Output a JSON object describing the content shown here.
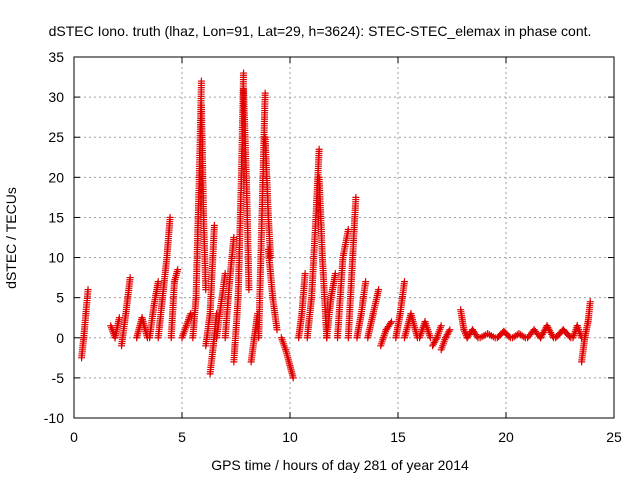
{
  "chart_data": {
    "type": "scatter",
    "title": "dSTEC Iono. truth (lhaz, Lon=91, Lat=29, h=3624): STEC-STEC_elemax in phase cont.",
    "xlabel": "GPS time / hours of day 281 of year 2014",
    "ylabel": "dSTEC  / TECUs",
    "xlim": [
      0,
      25
    ],
    "ylim": [
      -10,
      35
    ],
    "x_ticks": [
      0,
      5,
      10,
      15,
      20,
      25
    ],
    "y_ticks": [
      -10,
      -5,
      0,
      5,
      10,
      15,
      20,
      25,
      30,
      35
    ],
    "x_tick_labels": [
      "0",
      "5",
      "10",
      "15",
      "20",
      "25"
    ],
    "y_tick_labels": [
      "-10",
      "-5",
      "0",
      "5",
      "10",
      "15",
      "20",
      "25",
      "30",
      "35"
    ],
    "grid": true,
    "marker": "+",
    "series": [
      {
        "name": "dSTEC",
        "color": "#e00000",
        "arcs": [
          {
            "x": [
              0.35,
              0.45,
              0.55,
              0.65
            ],
            "y": [
              -2.5,
              0,
              3,
              6
            ]
          },
          {
            "x": [
              1.7,
              1.9,
              2.1
            ],
            "y": [
              1.5,
              0,
              2.5
            ]
          },
          {
            "x": [
              2.2,
              2.4,
              2.6
            ],
            "y": [
              -1,
              3,
              7.5
            ]
          },
          {
            "x": [
              2.9,
              3.15,
              3.4
            ],
            "y": [
              0,
              2.5,
              0
            ]
          },
          {
            "x": [
              3.5,
              3.7,
              3.9
            ],
            "y": [
              0,
              4,
              7
            ]
          },
          {
            "x": [
              3.9,
              4.1,
              4.3,
              4.45
            ],
            "y": [
              0,
              5,
              10,
              15
            ]
          },
          {
            "x": [
              4.5,
              4.65,
              4.8
            ],
            "y": [
              0,
              7,
              8.5
            ]
          },
          {
            "x": [
              5.0,
              5.2,
              5.4
            ],
            "y": [
              0,
              1.5,
              3
            ]
          },
          {
            "x": [
              5.5,
              5.65,
              5.8,
              5.9
            ],
            "y": [
              0,
              5,
              20,
              32
            ]
          },
          {
            "x": [
              5.9,
              6.0,
              6.1
            ],
            "y": [
              29,
              15,
              6
            ]
          },
          {
            "x": [
              6.1,
              6.3,
              6.5
            ],
            "y": [
              -1,
              3,
              14
            ]
          },
          {
            "x": [
              6.3,
              6.45,
              6.6
            ],
            "y": [
              -4.5,
              -1,
              3
            ]
          },
          {
            "x": [
              6.6,
              6.8,
              7.0
            ],
            "y": [
              0,
              4,
              8
            ]
          },
          {
            "x": [
              7.0,
              7.2,
              7.4
            ],
            "y": [
              0,
              7,
              12.5
            ]
          },
          {
            "x": [
              7.4,
              7.6,
              7.75,
              7.85
            ],
            "y": [
              -3,
              5,
              20,
              33
            ]
          },
          {
            "x": [
              7.85,
              8.0,
              8.1
            ],
            "y": [
              31,
              18,
              6
            ]
          },
          {
            "x": [
              8.2,
              8.35,
              8.5
            ],
            "y": [
              -3,
              0,
              3
            ]
          },
          {
            "x": [
              8.55,
              8.7,
              8.85
            ],
            "y": [
              0,
              15,
              30.5
            ]
          },
          {
            "x": [
              8.85,
              9.0,
              9.1
            ],
            "y": [
              25,
              15,
              10
            ]
          },
          {
            "x": [
              9.0,
              9.2,
              9.4
            ],
            "y": [
              11,
              5,
              1
            ]
          },
          {
            "x": [
              9.6,
              9.8,
              10.0,
              10.15
            ],
            "y": [
              0,
              -1.5,
              -3.5,
              -5
            ]
          },
          {
            "x": [
              10.4,
              10.55,
              10.7
            ],
            "y": [
              0,
              3,
              8
            ]
          },
          {
            "x": [
              10.8,
              11.0,
              11.2,
              11.35
            ],
            "y": [
              0,
              5,
              15,
              23.5
            ]
          },
          {
            "x": [
              11.35,
              11.5,
              11.7
            ],
            "y": [
              20,
              10,
              0
            ]
          },
          {
            "x": [
              11.7,
              11.9,
              12.1
            ],
            "y": [
              0,
              5,
              8
            ]
          },
          {
            "x": [
              12.2,
              12.45,
              12.7
            ],
            "y": [
              0,
              10,
              13.5
            ]
          },
          {
            "x": [
              12.7,
              12.9,
              13.05
            ],
            "y": [
              0,
              10,
              17.5
            ]
          },
          {
            "x": [
              13.1,
              13.3,
              13.5
            ],
            "y": [
              0,
              3,
              7
            ]
          },
          {
            "x": [
              13.6,
              13.85,
              14.1
            ],
            "y": [
              0,
              3,
              6
            ]
          },
          {
            "x": [
              14.2,
              14.45,
              14.7
            ],
            "y": [
              -1,
              1,
              2
            ]
          },
          {
            "x": [
              14.9,
              15.1,
              15.3
            ],
            "y": [
              0,
              3,
              7
            ]
          },
          {
            "x": [
              15.3,
              15.6,
              15.9
            ],
            "y": [
              0,
              3,
              0
            ]
          },
          {
            "x": [
              16.0,
              16.25,
              16.5
            ],
            "y": [
              0,
              2,
              0
            ]
          },
          {
            "x": [
              16.6,
              16.8,
              17.0
            ],
            "y": [
              -1,
              0,
              1.5
            ]
          },
          {
            "x": [
              17.0,
              17.2,
              17.4
            ],
            "y": [
              -1.5,
              0,
              1
            ]
          },
          {
            "x": [
              17.9,
              18.05,
              18.2
            ],
            "y": [
              3.5,
              1,
              0
            ]
          },
          {
            "x": [
              18.2,
              18.45,
              18.7
            ],
            "y": [
              0,
              1,
              0
            ]
          },
          {
            "x": [
              18.8,
              19.15,
              19.5
            ],
            "y": [
              0,
              0.5,
              0
            ]
          },
          {
            "x": [
              19.6,
              19.9,
              20.2
            ],
            "y": [
              0,
              0.8,
              0
            ]
          },
          {
            "x": [
              20.3,
              20.6,
              20.9
            ],
            "y": [
              0,
              0.5,
              0
            ]
          },
          {
            "x": [
              21.0,
              21.3,
              21.6
            ],
            "y": [
              0,
              1,
              0
            ]
          },
          {
            "x": [
              21.6,
              21.9,
              22.2
            ],
            "y": [
              0,
              1.5,
              0
            ]
          },
          {
            "x": [
              22.3,
              22.65,
              23.0
            ],
            "y": [
              0,
              1,
              0
            ]
          },
          {
            "x": [
              23.1,
              23.3,
              23.5
            ],
            "y": [
              0,
              1.5,
              0
            ]
          },
          {
            "x": [
              23.5,
              23.65,
              23.8,
              23.9
            ],
            "y": [
              -3,
              0,
              2,
              4.5
            ]
          }
        ]
      }
    ]
  }
}
